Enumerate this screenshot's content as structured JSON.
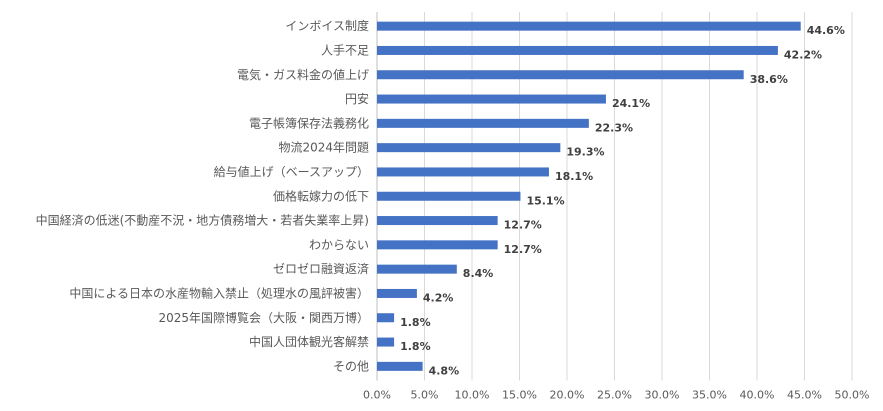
{
  "chart_data": {
    "type": "bar",
    "orientation": "horizontal",
    "categories": [
      "インボイス制度",
      "人手不足",
      "電気・ガス料金の値上げ",
      "円安",
      "電子帳簿保存法義務化",
      "物流2024年問題",
      "給与値上げ（ベースアップ）",
      "価格転嫁力の低下",
      "中国経済の低迷(不動産不況・地方債務増大・若者失業率上昇)",
      "わからない",
      "ゼロゼロ融資返済",
      "中国による日本の水産物輸入禁止（処理水の風評被害）",
      "2025年国際博覧会（大阪・関西万博）",
      "中国人団体観光客解禁",
      "その他"
    ],
    "values": [
      44.6,
      42.2,
      38.6,
      24.1,
      22.3,
      19.3,
      18.1,
      15.1,
      12.7,
      12.7,
      8.4,
      4.2,
      1.8,
      1.8,
      4.8
    ],
    "data_labels": [
      "44.6%",
      "42.2%",
      "38.6%",
      "24.1%",
      "22.3%",
      "19.3%",
      "18.1%",
      "15.1%",
      "12.7%",
      "12.7%",
      "8.4%",
      "4.2%",
      "1.8%",
      "1.8%",
      "4.8%"
    ],
    "x_ticks": [
      0,
      5,
      10,
      15,
      20,
      25,
      30,
      35,
      40,
      45,
      50
    ],
    "x_tick_labels": [
      "0.0%",
      "5.0%",
      "10.0%",
      "15.0%",
      "20.0%",
      "25.0%",
      "30.0%",
      "35.0%",
      "40.0%",
      "45.0%",
      "50.0%"
    ],
    "xlim": [
      0,
      50
    ],
    "title": "",
    "xlabel": "",
    "ylabel": "",
    "grid": "vertical",
    "legend": "none",
    "bar_color": "#4472c4"
  }
}
